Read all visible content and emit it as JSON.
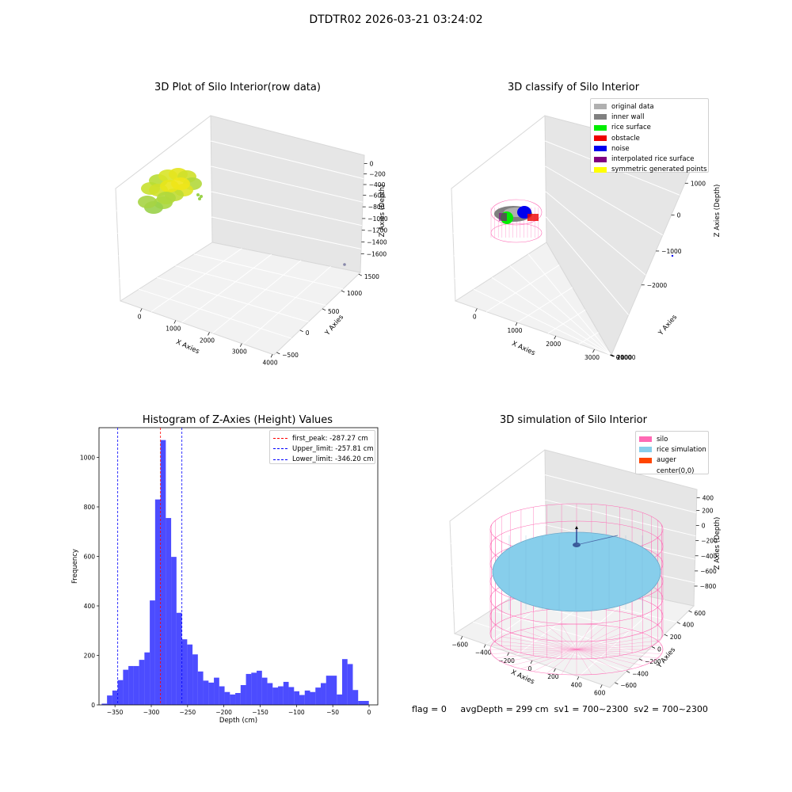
{
  "suptitle": "DTDTR02 2026-03-21 03:24:02",
  "footer": "flag = 0     avgDepth = 299 cm  sv1 = 700~2300  sv2 = 700~2300",
  "chart_data": [
    {
      "type": "scatter",
      "projection": "3d",
      "title": "3D Plot of Silo Interior(row data)",
      "xlabel": "X Axies",
      "ylabel": "Y Axies",
      "zlabel": "Z Axies (Depth)",
      "xticks": [
        "0",
        "1000",
        "2000",
        "3000",
        "4000"
      ],
      "yticks": [
        "−500",
        "0",
        "500",
        "1000",
        "1500"
      ],
      "zticks": [
        "0",
        "−200",
        "−400",
        "−600",
        "−800",
        "−1000",
        "−1200",
        "−1400",
        "−1600"
      ],
      "color_scale": "viridis-green-yellow"
    },
    {
      "type": "scatter",
      "projection": "3d",
      "title": "3D classify of Silo Interior",
      "xlabel": "X Axies",
      "ylabel": "Y Axies",
      "zlabel": "Z Axies (Depth)",
      "xticks": [
        "0",
        "1000",
        "2000",
        "3000"
      ],
      "yticks": [
        "−1000",
        "0",
        "1000",
        "2000"
      ],
      "zticks": [
        "1000",
        "0",
        "−1000",
        "−2000"
      ],
      "legend": [
        {
          "label": "original data",
          "color": "#b0b0b0"
        },
        {
          "label": "inner wall",
          "color": "#808080"
        },
        {
          "label": "rice surface",
          "color": "#00ee00"
        },
        {
          "label": "obstacle",
          "color": "#ee0000"
        },
        {
          "label": "noise",
          "color": "#0000ee"
        },
        {
          "label": "interpolated rice surface",
          "color": "#800080"
        },
        {
          "label": "symmetric generated points",
          "color": "#ffff00"
        }
      ],
      "legend_position": "top-right"
    },
    {
      "type": "bar",
      "title": "Histogram of Z-Axies (Height) Values",
      "xlabel": "Depth (cm)",
      "ylabel": "Frequency",
      "xlim": [
        -372,
        12
      ],
      "ylim": [
        0,
        1120
      ],
      "xticks": [
        -350,
        -300,
        -250,
        -200,
        -150,
        -100,
        -50,
        0
      ],
      "yticks": [
        0,
        200,
        400,
        600,
        800,
        1000
      ],
      "bin_width": 7.36,
      "bin_start": -368.3,
      "bin_color": "#0000ff",
      "values": [
        5,
        38,
        58,
        100,
        142,
        157,
        157,
        182,
        212,
        422,
        830,
        1070,
        755,
        598,
        372,
        265,
        244,
        204,
        135,
        98,
        90,
        110,
        75,
        52,
        42,
        48,
        80,
        125,
        130,
        138,
        110,
        88,
        70,
        75,
        93,
        72,
        55,
        40,
        58,
        52,
        70,
        88,
        118,
        118,
        42,
        185,
        165,
        60,
        16,
        16
      ],
      "lines": [
        {
          "label": "first_peak: -287.27 cm",
          "x": -287.27,
          "color": "#ff0000"
        },
        {
          "label": "Upper_limit: -257.81 cm",
          "x": -257.81,
          "color": "#0000ff"
        },
        {
          "label": "Lower_limit: -346.20 cm",
          "x": -346.2,
          "color": "#0000ff"
        }
      ],
      "legend_position": "top-right"
    },
    {
      "type": "surface",
      "projection": "3d",
      "title": "3D simulation of Silo Interior",
      "xlabel": "X Axies",
      "ylabel": "Y Axies",
      "zlabel": "Z Axies (Depth)",
      "xticks": [
        "−600",
        "−400",
        "−200",
        "0",
        "200",
        "400",
        "600"
      ],
      "yticks": [
        "−600",
        "−400",
        "−200",
        "0",
        "200",
        "400",
        "600"
      ],
      "zticks": [
        "400",
        "200",
        "0",
        "−200",
        "−400",
        "−600",
        "−800"
      ],
      "legend": [
        {
          "label": "silo",
          "color": "#ff69b4"
        },
        {
          "label": "rice simulation",
          "color": "#87ceeb"
        },
        {
          "label": "auger",
          "color": "#ff4500"
        },
        {
          "label": "center(0,0)",
          "color": "transparent"
        }
      ],
      "legend_position": "top-right"
    }
  ]
}
